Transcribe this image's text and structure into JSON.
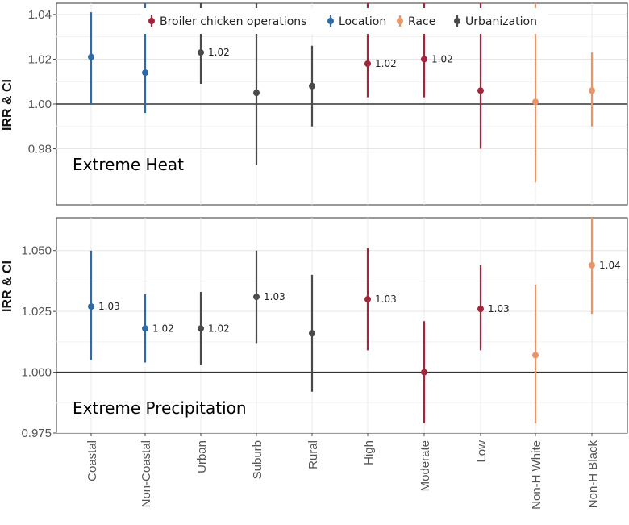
{
  "chart_data": {
    "type": "scatter",
    "subtype": "point-range (IRR with confidence intervals)",
    "categories": [
      "Coastal",
      "Non-Coastal",
      "Urban",
      "Suburb",
      "Rural",
      "High",
      "Moderate",
      "Low",
      "Non-H White",
      "Non-H Black"
    ],
    "category_groups": [
      "Location",
      "Location",
      "Urbanization",
      "Urbanization",
      "Urbanization",
      "Broiler chicken operations",
      "Broiler chicken operations",
      "Broiler chicken operations",
      "Race",
      "Race"
    ],
    "legend": [
      {
        "name": "Broiler chicken operations",
        "color": "#a3243b"
      },
      {
        "name": "Location",
        "color": "#2e6aa8"
      },
      {
        "name": "Race",
        "color": "#e8956b"
      },
      {
        "name": "Urbanization",
        "color": "#4a4a4a"
      }
    ],
    "legend_position": "top",
    "panels": [
      {
        "title": "Extreme Heat",
        "ylabel": "IRR & CI",
        "ylim": [
          0.955,
          1.045
        ],
        "yticks": [
          0.98,
          1.0,
          1.02,
          1.04
        ],
        "ytick_labels": [
          "0.98",
          "1.00",
          "1.02",
          "1.04"
        ],
        "reference_line": 1.0,
        "estimates": [
          1.021,
          1.014,
          1.023,
          1.005,
          1.008,
          1.018,
          1.02,
          1.006,
          1.001,
          1.006
        ],
        "ci_lower": [
          1.0,
          0.996,
          1.009,
          0.973,
          0.99,
          1.003,
          1.003,
          0.98,
          0.965,
          0.99
        ],
        "ci_upper": [
          1.041,
          1.045,
          1.045,
          1.045,
          1.026,
          1.045,
          1.045,
          1.045,
          1.045,
          1.023
        ],
        "point_labels": [
          "",
          "",
          "1.02",
          "",
          "",
          "1.02",
          "1.02",
          "",
          "",
          ""
        ]
      },
      {
        "title": "Extreme Precipitation",
        "ylabel": "IRR & CI",
        "ylim": [
          0.975,
          1.0635
        ],
        "yticks": [
          0.975,
          1.0,
          1.025,
          1.05
        ],
        "ytick_labels": [
          "0.975",
          "1.000",
          "1.025",
          "1.050"
        ],
        "reference_line": 1.0,
        "estimates": [
          1.027,
          1.018,
          1.018,
          1.031,
          1.016,
          1.03,
          1.0,
          1.026,
          1.007,
          1.044
        ],
        "ci_lower": [
          1.005,
          1.004,
          1.003,
          1.012,
          0.992,
          1.009,
          0.979,
          1.009,
          0.979,
          1.024
        ],
        "ci_upper": [
          1.05,
          1.032,
          1.033,
          1.05,
          1.04,
          1.051,
          1.021,
          1.044,
          1.036,
          1.0635
        ],
        "point_labels": [
          "1.03",
          "1.02",
          "1.02",
          "1.03",
          "",
          "1.03",
          "",
          "1.03",
          "",
          "1.04"
        ]
      }
    ]
  }
}
